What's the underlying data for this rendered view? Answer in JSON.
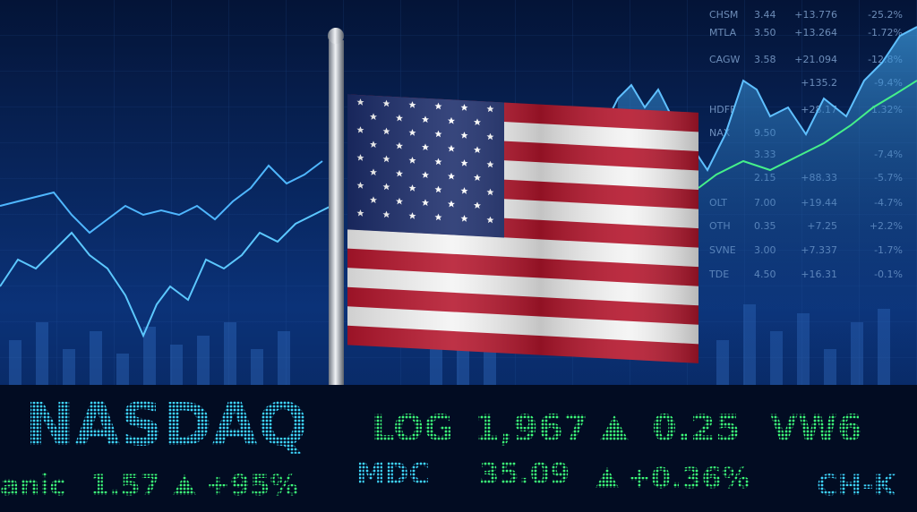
{
  "quote_table": {
    "rows": [
      {
        "symbol": "CHSM",
        "price": "3.44",
        "change": "+13.776",
        "pct": "-25.2%"
      },
      {
        "symbol": "MTLA",
        "price": "3.50",
        "change": "+13.264",
        "pct": "-1.72%"
      },
      {
        "symbol": "CAGW",
        "price": "3.58",
        "change": "+21.094",
        "pct": "-12.8%"
      },
      {
        "change": "+135.2",
        "pct": "-9.4%"
      },
      {
        "symbol": "HDFF",
        "change": "+28.17",
        "pct": "-1.32%"
      },
      {
        "symbol": "NAX",
        "price": "9.50"
      },
      {
        "price": "3.33",
        "pct": "-7.4%"
      },
      {
        "price": "2.15",
        "change": "+88.33",
        "pct": "-5.7%"
      },
      {
        "symbol": "OLT",
        "price": "7.00",
        "change": "+19.44",
        "pct": "-4.7%"
      },
      {
        "symbol": "OTH",
        "price": "0.35",
        "change": "+7.25",
        "pct": "+2.2%"
      },
      {
        "symbol": "SVNE",
        "price": "3.00",
        "change": "+7.337",
        "pct": "-1.7%"
      },
      {
        "symbol": "TDE",
        "price": "4.50",
        "change": "+16.31",
        "pct": "-0.1%"
      }
    ]
  },
  "ticker": {
    "row1": [
      "NASDAQ",
      "LOG",
      "1,967",
      "0.25",
      "VW6"
    ],
    "row2": [
      "anic",
      "1.57",
      "+95%",
      "MDC",
      "35.09",
      "+0.36%",
      "CH-K"
    ]
  }
}
